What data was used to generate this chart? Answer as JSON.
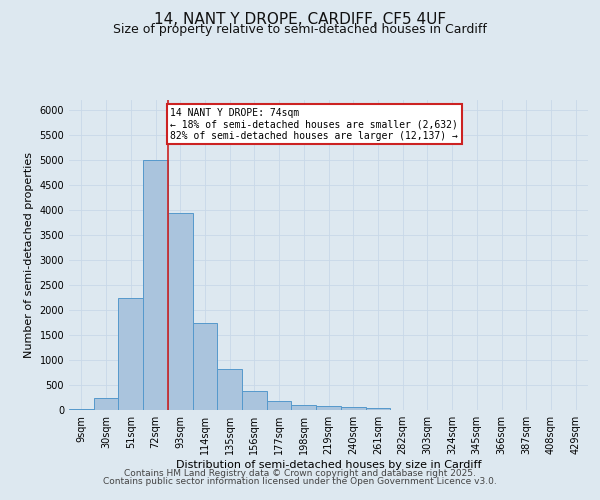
{
  "title": "14, NANT Y DROPE, CARDIFF, CF5 4UF",
  "subtitle": "Size of property relative to semi-detached houses in Cardiff",
  "xlabel": "Distribution of semi-detached houses by size in Cardiff",
  "ylabel": "Number of semi-detached properties",
  "categories": [
    "9sqm",
    "30sqm",
    "51sqm",
    "72sqm",
    "93sqm",
    "114sqm",
    "135sqm",
    "156sqm",
    "177sqm",
    "198sqm",
    "219sqm",
    "240sqm",
    "261sqm",
    "282sqm",
    "303sqm",
    "324sqm",
    "345sqm",
    "366sqm",
    "387sqm",
    "408sqm",
    "429sqm"
  ],
  "values": [
    30,
    240,
    2250,
    5000,
    3950,
    1750,
    830,
    390,
    190,
    110,
    80,
    60,
    45,
    0,
    0,
    0,
    0,
    0,
    0,
    0,
    0
  ],
  "bar_color": "#aac4dd",
  "bar_edge_color": "#5599cc",
  "property_label": "14 NANT Y DROPE: 74sqm",
  "smaller_pct": 18,
  "smaller_count": 2632,
  "larger_pct": 82,
  "larger_count": 12137,
  "annotation_line_color": "#cc2222",
  "annotation_box_edge_color": "#cc2222",
  "annotation_box_face_color": "#ffffff",
  "ylim": [
    0,
    6200
  ],
  "yticks": [
    0,
    500,
    1000,
    1500,
    2000,
    2500,
    3000,
    3500,
    4000,
    4500,
    5000,
    5500,
    6000
  ],
  "grid_color": "#c8d8e8",
  "background_color": "#dde8f0",
  "title_fontsize": 11,
  "subtitle_fontsize": 9,
  "axis_label_fontsize": 8,
  "tick_fontsize": 7,
  "footer_line1": "Contains HM Land Registry data © Crown copyright and database right 2025.",
  "footer_line2": "Contains public sector information licensed under the Open Government Licence v3.0.",
  "footer_fontsize": 6.5
}
